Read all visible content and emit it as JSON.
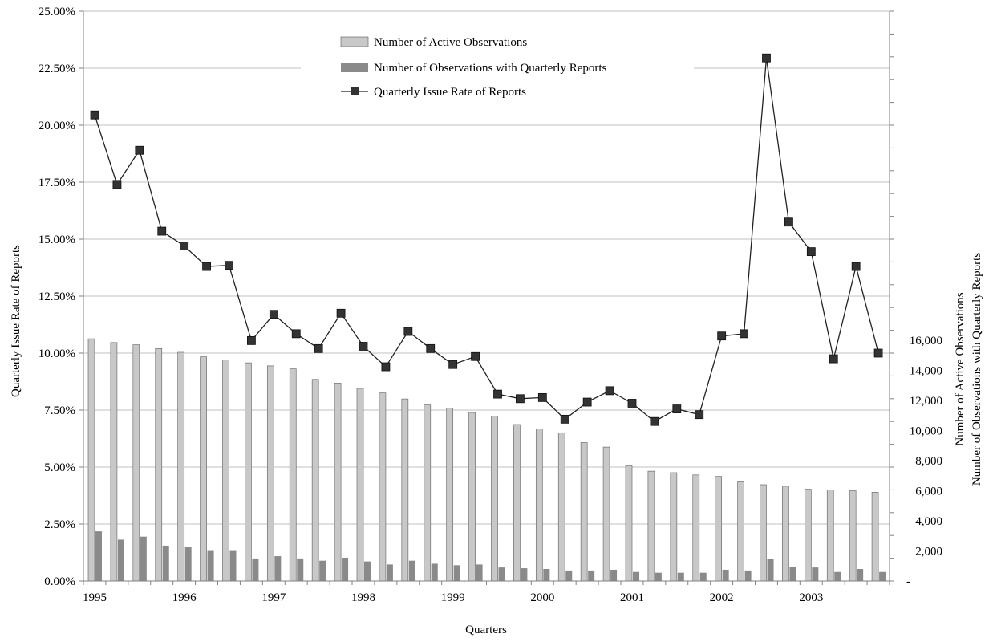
{
  "chart_data": {
    "type": "bar",
    "title": "",
    "xlabel": "Quarters",
    "ylabel_left": "Quarterly Issue Rate of Reports",
    "ylabel_right": [
      "Number of Active Observations",
      "Number of Observations with Quarterly Reports"
    ],
    "y_left_lim": [
      0,
      25
    ],
    "y_left_ticks": [
      "0.00%",
      "2.50%",
      "5.00%",
      "7.50%",
      "10.00%",
      "12.50%",
      "15.00%",
      "17.50%",
      "20.00%",
      "22.50%",
      "25.00%"
    ],
    "y_right_lim": [
      0,
      16000
    ],
    "y_right_ticks": [
      "-",
      "2,000",
      "4,000",
      "6,000",
      "8,000",
      "10,000",
      "12,000",
      "14,000",
      "16,000"
    ],
    "x_tick_labels": [
      "1995",
      "1996",
      "1997",
      "1998",
      "1999",
      "2000",
      "2001",
      "2002",
      "2003"
    ],
    "legend_position": "top-center",
    "grid": "horizontal",
    "series": [
      {
        "name": "Number of Active Observations",
        "type": "bar",
        "axis": "right",
        "color": "#c8c8c8",
        "values": [
          16100,
          15850,
          15700,
          15450,
          15200,
          14900,
          14700,
          14500,
          14300,
          14100,
          13400,
          13150,
          12800,
          12500,
          12100,
          11700,
          11500,
          11200,
          10950,
          10400,
          10100,
          9850,
          9200,
          8900,
          7650,
          7300,
          7200,
          7050,
          6950,
          6600,
          6400,
          6300,
          6100,
          6050,
          6000,
          5900
        ]
      },
      {
        "name": "Number of Observations with Quarterly Reports",
        "type": "bar",
        "axis": "right",
        "color": "#8a8a8a",
        "values": [
          3300,
          2750,
          2950,
          2350,
          2250,
          2050,
          2050,
          1500,
          1650,
          1500,
          1350,
          1550,
          1300,
          1100,
          1350,
          1150,
          1050,
          1100,
          900,
          850,
          800,
          700,
          700,
          750,
          600,
          550,
          550,
          550,
          750,
          700,
          1450,
          950,
          900,
          600,
          800,
          600
        ]
      },
      {
        "name": "Quarterly Issue Rate of Reports",
        "type": "line",
        "axis": "left",
        "marker": "square",
        "color": "#222222",
        "values": [
          20.45,
          17.4,
          18.9,
          15.35,
          14.7,
          13.8,
          13.85,
          10.55,
          11.7,
          10.85,
          10.2,
          11.75,
          10.3,
          9.4,
          10.95,
          10.2,
          9.5,
          9.85,
          8.2,
          8.0,
          8.05,
          7.1,
          7.85,
          8.35,
          7.8,
          7.0,
          7.55,
          7.3,
          10.75,
          10.85,
          22.95,
          15.75,
          14.45,
          9.75,
          13.8,
          10.0
        ]
      }
    ]
  }
}
